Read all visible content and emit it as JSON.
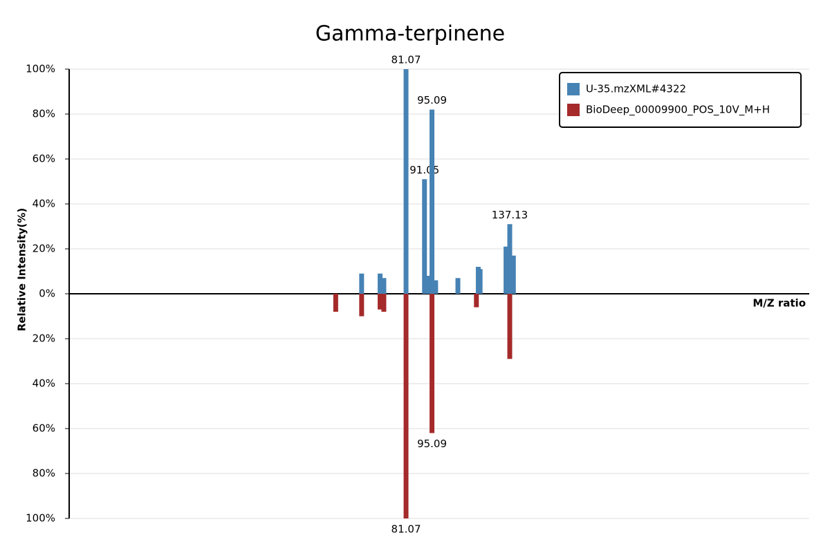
{
  "chart_data": {
    "type": "mirror-bar",
    "title": "Gamma-terpinene",
    "x_label": "M/Z ratio",
    "y_label": "Relative Intensity(%)",
    "xlim": [
      -101,
      299
    ],
    "ylim": [
      -100,
      100
    ],
    "yticks": [
      {
        "value": -100,
        "label": "100%"
      },
      {
        "value": -80,
        "label": "80%"
      },
      {
        "value": -60,
        "label": "60%"
      },
      {
        "value": -40,
        "label": "40%"
      },
      {
        "value": -20,
        "label": "20%"
      },
      {
        "value": 0,
        "label": "0%"
      },
      {
        "value": 20,
        "label": "20%"
      },
      {
        "value": 40,
        "label": "40%"
      },
      {
        "value": 60,
        "label": "60%"
      },
      {
        "value": 80,
        "label": "80%"
      },
      {
        "value": 100,
        "label": "100%"
      }
    ],
    "grid": true,
    "legend": "top-right",
    "series": [
      {
        "name": "U-35.mzXML#4322",
        "color": "#4682b4",
        "x": [
          57.07,
          67.05,
          69.07,
          81.07,
          91.05,
          93.07,
          95.09,
          97.07,
          109.1,
          120.1,
          121.1,
          135.1,
          137.13,
          139.1
        ],
        "values": [
          9,
          9,
          7,
          100,
          51,
          8,
          82,
          6,
          7,
          12,
          11,
          21,
          31,
          17
        ]
      },
      {
        "name": "BioDeep_00009900_POS_10V_M+H",
        "color": "#a52a2a",
        "x": [
          43.07,
          57.07,
          67.05,
          69.07,
          81.07,
          95.09,
          119.1,
          137.13
        ],
        "values": [
          -8,
          -10,
          -7,
          -8,
          -100,
          -62,
          -6,
          -29
        ]
      }
    ]
  }
}
